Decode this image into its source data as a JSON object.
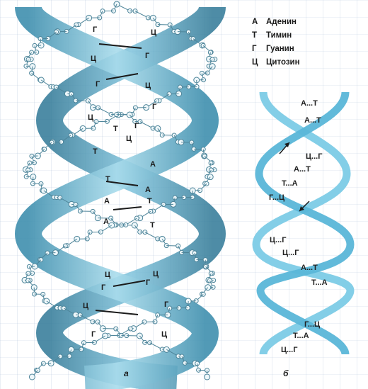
{
  "legend": [
    {
      "key": "А",
      "name": "Аденин"
    },
    {
      "key": "Т",
      "name": "Тимин"
    },
    {
      "key": "Г",
      "name": "Гуанин"
    },
    {
      "key": "Ц",
      "name": "Цитозин"
    }
  ],
  "panel_a": {
    "label": "а",
    "letters": [
      "Г",
      "Ц",
      "Ц",
      "Г",
      "Г",
      "Ц",
      "Ц",
      "Г",
      "Г",
      "Т",
      "Ц",
      "Т",
      "А",
      "Т",
      "А",
      "А",
      "Т",
      "А",
      "Т",
      "Ц",
      "Ц",
      "Г",
      "Г",
      "Ц",
      "Г",
      "Г",
      "Ц"
    ]
  },
  "panel_b": {
    "label": "б",
    "pairs": [
      "А...Т",
      "А...Т",
      "Ц...Г",
      "А...Т",
      "Т...А",
      "Г...Ц",
      "Ц...Г",
      "Ц...Г",
      "А...Т",
      "Т...А",
      "Г...Ц",
      "Т...А",
      "Ц...Г"
    ]
  },
  "colors": {
    "strand_light": "#9fd4e6",
    "strand_dark": "#4a9ab8",
    "strand_mid": "#6fb8d4",
    "atom": "#e8f4f8",
    "bond": "#5a8fa3"
  }
}
